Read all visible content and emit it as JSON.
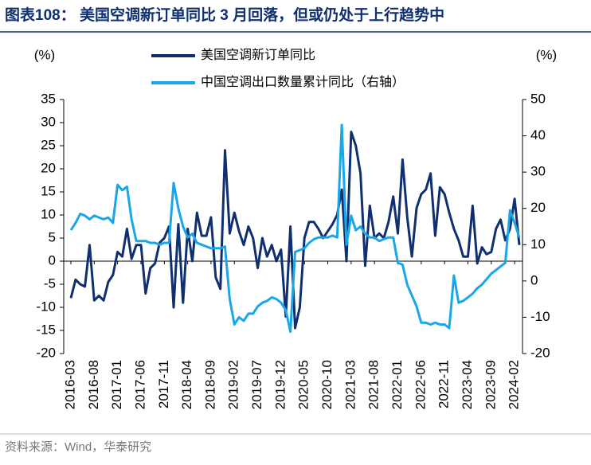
{
  "chart_data": {
    "type": "line",
    "title": "图表108：  美国空调新订单同比 3 月回落，但或仍处于上行趋势中",
    "y_label": "(%)",
    "y2_label": "(%)",
    "source": "资料来源：Wind，华泰研究",
    "categories": [
      "2016-03",
      null,
      null,
      null,
      null,
      "2016-08",
      null,
      null,
      null,
      null,
      "2017-01",
      null,
      null,
      null,
      null,
      "2017-06",
      null,
      null,
      null,
      null,
      "2017-11",
      null,
      null,
      null,
      null,
      "2018-04",
      null,
      null,
      null,
      null,
      "2018-09",
      null,
      null,
      null,
      null,
      "2019-02",
      null,
      null,
      null,
      null,
      "2019-07",
      null,
      null,
      null,
      null,
      "2019-12",
      null,
      null,
      null,
      null,
      "2020-05",
      null,
      null,
      null,
      null,
      "2020-10",
      null,
      null,
      null,
      null,
      "2021-03",
      null,
      null,
      null,
      null,
      "2021-08",
      null,
      null,
      null,
      null,
      "2022-01",
      null,
      null,
      null,
      null,
      "2022-06",
      null,
      null,
      null,
      null,
      "2022-11",
      null,
      null,
      null,
      null,
      "2023-04",
      null,
      null,
      null,
      null,
      "2023-09",
      null,
      null,
      null,
      null,
      "2024-02",
      null
    ],
    "series": [
      {
        "name": "美国空调新订单同比",
        "color": "#0f2f6e",
        "values": [
          -8,
          -4,
          -5,
          -5.5,
          3.5,
          -8.5,
          -7.5,
          -8.5,
          -4.5,
          -3,
          2,
          1,
          7,
          0.5,
          3.5,
          3.5,
          -7,
          -1.5,
          -0.5,
          4,
          5,
          7.5,
          -10,
          8,
          -9,
          7,
          0,
          10.5,
          5.5,
          5.5,
          9.5,
          -3.5,
          -6,
          24,
          6,
          10.5,
          6.5,
          3.5,
          7.5,
          5,
          -1.5,
          5,
          1,
          3.5,
          0,
          2.5,
          -12,
          7.5,
          -14.5,
          -10,
          5,
          8.5,
          8.5,
          7,
          5,
          6.5,
          8,
          10,
          15.5,
          0,
          28,
          25,
          19,
          -1,
          12,
          5,
          6,
          5,
          8.5,
          14,
          6,
          22,
          9.5,
          1,
          11.5,
          14.5,
          15.5,
          19,
          5.5,
          16,
          14.5,
          10.5,
          7,
          4.5,
          1,
          1,
          12,
          -0.5,
          3,
          1.5,
          2,
          7,
          9,
          4.5,
          7,
          13.5,
          3.5
        ]
      },
      {
        "name": "中国空调出口数量累计同比（右轴）",
        "color": "#1aa7e8",
        "axis": "y2",
        "values": [
          14,
          16,
          18.5,
          18,
          17,
          18,
          17.5,
          17,
          17.5,
          16,
          26.5,
          25,
          26,
          17,
          11,
          11,
          11,
          10.5,
          10.5,
          10,
          10.5,
          10.5,
          27,
          20,
          15,
          12,
          13,
          10.5,
          10,
          9.5,
          9,
          9,
          9,
          9.5,
          -5,
          -12,
          -10,
          -11,
          -9,
          -9,
          -7,
          -6,
          -5.5,
          -4.5,
          -5,
          -6,
          -8,
          -14,
          8,
          8.5,
          9,
          10.5,
          11.5,
          12,
          12,
          12,
          12.5,
          12,
          43,
          10,
          18,
          14,
          15,
          13,
          12,
          12,
          11,
          11.5,
          12,
          12,
          5,
          4.5,
          -1,
          -4,
          -7,
          -11.5,
          -11.5,
          -12,
          -11.5,
          -12,
          -12,
          -13,
          1.5,
          -6,
          -5.5,
          -4.5,
          -3.5,
          -2,
          -1,
          0.5,
          2,
          3,
          4,
          5,
          19.5,
          16,
          12
        ]
      }
    ],
    "ylim": [
      -20,
      35
    ],
    "yticks": [
      -20,
      -15,
      -10,
      -5,
      0,
      5,
      10,
      15,
      20,
      25,
      30,
      35
    ],
    "y2lim": [
      -20,
      50
    ],
    "y2ticks": [
      -20,
      -10,
      0,
      10,
      20,
      30,
      40,
      50
    ]
  }
}
